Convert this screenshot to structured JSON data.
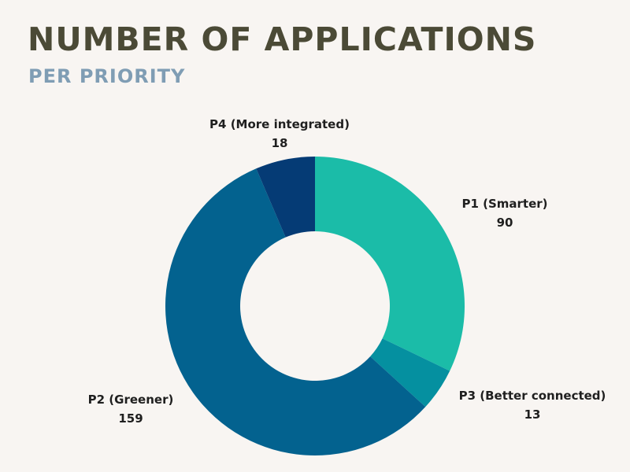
{
  "header": {
    "title": "NUMBER OF APPLICATIONS",
    "subtitle": "PER PRIORITY"
  },
  "chart_data": {
    "type": "pie",
    "variant": "donut",
    "title": "NUMBER OF APPLICATIONS",
    "subtitle": "PER PRIORITY",
    "categories": [
      "P1 (Smarter)",
      "P3 (Better connected)",
      "P2 (Greener)",
      "P4 (More integrated)"
    ],
    "values": [
      90,
      13,
      159,
      18
    ],
    "colors": [
      "#1bbca8",
      "#0590a0",
      "#03628f",
      "#053b75"
    ],
    "start_angle": "top",
    "direction": "clockwise",
    "legend": "none",
    "data_labels": "outside"
  }
}
